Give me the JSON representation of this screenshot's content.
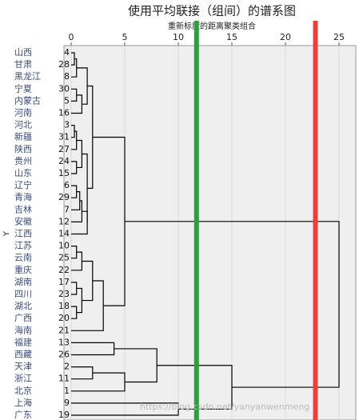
{
  "chart_data": {
    "type": "dendrogram",
    "title": "使用平均联接（组间）的谱系图",
    "subtitle": "重新标度的距离聚类组合",
    "y_label": "Y",
    "watermark": "https://blog.csdn.net/yanyanwenmeng",
    "leaf_names": [
      "山西",
      "甘肃",
      "黑龙江",
      "宁夏",
      "内蒙古",
      "河南",
      "河北",
      "新疆",
      "陕西",
      "贵州",
      "山东",
      "辽宁",
      "青海",
      "吉林",
      "安徽",
      "江西",
      "江苏",
      "云南",
      "重庆",
      "湖南",
      "四川",
      "湖北",
      "广西",
      "海南",
      "福建",
      "西藏",
      "天津",
      "浙江",
      "北京",
      "上海",
      "广东"
    ],
    "leaf_numbers": [
      4,
      28,
      8,
      30,
      5,
      16,
      3,
      31,
      27,
      24,
      15,
      6,
      29,
      7,
      12,
      14,
      10,
      25,
      22,
      17,
      23,
      18,
      20,
      21,
      13,
      26,
      2,
      11,
      1,
      9,
      19
    ],
    "merges": [
      {
        "left": 0,
        "right": 1,
        "height": 0.3
      },
      {
        "left": 31,
        "right": 2,
        "height": 0.5
      },
      {
        "left": 3,
        "right": 4,
        "height": 0.5
      },
      {
        "left": 33,
        "right": 5,
        "height": 1.0
      },
      {
        "left": 32,
        "right": 34,
        "height": 1.5
      },
      {
        "left": 6,
        "right": 7,
        "height": 0.3
      },
      {
        "left": 36,
        "right": 8,
        "height": 0.5
      },
      {
        "left": 9,
        "right": 10,
        "height": 0.5
      },
      {
        "left": 37,
        "right": 38,
        "height": 1.0
      },
      {
        "left": 11,
        "right": 12,
        "height": 0.5
      },
      {
        "left": 40,
        "right": 13,
        "height": 0.8
      },
      {
        "left": 41,
        "right": 14,
        "height": 1.0
      },
      {
        "left": 42,
        "right": 15,
        "height": 1.5
      },
      {
        "left": 39,
        "right": 43,
        "height": 1.5
      },
      {
        "left": 35,
        "right": 44,
        "height": 2.0
      },
      {
        "left": 16,
        "right": 17,
        "height": 0.5
      },
      {
        "left": 46,
        "right": 18,
        "height": 1.0
      },
      {
        "left": 19,
        "right": 20,
        "height": 0.5
      },
      {
        "left": 21,
        "right": 22,
        "height": 0.5
      },
      {
        "left": 48,
        "right": 49,
        "height": 1.0
      },
      {
        "left": 47,
        "right": 50,
        "height": 2.0
      },
      {
        "left": 51,
        "right": 23,
        "height": 3.0
      },
      {
        "left": 45,
        "right": 52,
        "height": 5.0
      },
      {
        "left": 24,
        "right": 25,
        "height": 4.0
      },
      {
        "left": 26,
        "right": 27,
        "height": 2.0
      },
      {
        "left": 55,
        "right": 28,
        "height": 5.0
      },
      {
        "left": 54,
        "right": 56,
        "height": 8.0
      },
      {
        "left": 29,
        "right": 30,
        "height": 10.0
      },
      {
        "left": 57,
        "right": 58,
        "height": 15.0
      },
      {
        "left": 53,
        "right": 59,
        "height": 25.0
      }
    ],
    "xlim": [
      0,
      25.6
    ],
    "xticks": [
      0,
      5,
      10,
      15,
      20,
      25
    ],
    "grid": true,
    "line_color": "#000000",
    "cut_lines": [
      {
        "value": 11.7,
        "color": "#2e9e3c"
      },
      {
        "value": 22.8,
        "color": "#e8403a"
      }
    ]
  }
}
